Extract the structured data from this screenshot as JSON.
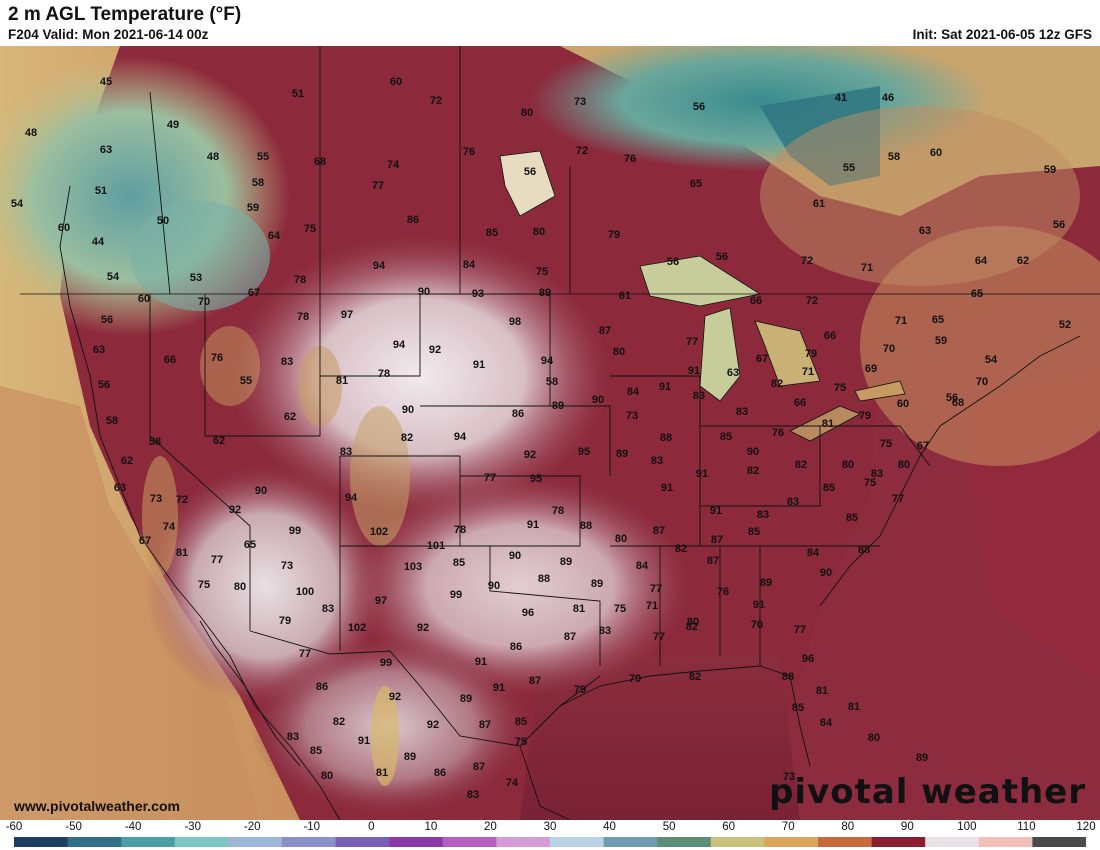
{
  "header": {
    "title": "2 m AGL Temperature (°F)",
    "valid": "F204 Valid: Mon 2021-06-14 00z",
    "init": "Init: Sat 2021-06-05 12z GFS"
  },
  "footer": {
    "credit": "www.pivotalweather.com",
    "watermark": "pivotal weather"
  },
  "colorbar": {
    "ticks": [
      "-60",
      "-50",
      "-40",
      "-30",
      "-20",
      "-10",
      "0",
      "10",
      "20",
      "30",
      "40",
      "50",
      "60",
      "70",
      "80",
      "90",
      "100",
      "110",
      "120"
    ],
    "colors": [
      "#1d3f63",
      "#2f6f8a",
      "#4a9ea6",
      "#7cc7c4",
      "#9db6d8",
      "#8d90c8",
      "#7a5fb6",
      "#8a3aa8",
      "#b55fc0",
      "#d79bd8",
      "#b9d2e6",
      "#6f9cb2",
      "#5b8d78",
      "#c9c27a",
      "#d9a65a",
      "#c86b3b",
      "#8a1f2f",
      "#e8e2e6",
      "#f3c0b9",
      "#4a4a4a"
    ]
  },
  "map_data": {
    "points": [
      {
        "v": "45"
      },
      {
        "v": "51"
      },
      {
        "v": "60"
      },
      {
        "v": "72"
      },
      {
        "v": "80"
      },
      {
        "v": "73"
      },
      {
        "v": "56"
      },
      {
        "v": "41"
      },
      {
        "v": "46"
      },
      {
        "v": "48"
      },
      {
        "v": "49"
      },
      {
        "v": "63"
      },
      {
        "v": "48"
      },
      {
        "v": "55"
      },
      {
        "v": "68"
      },
      {
        "v": "74"
      },
      {
        "v": "76"
      },
      {
        "v": "72"
      },
      {
        "v": "76"
      },
      {
        "v": "58"
      },
      {
        "v": "60"
      },
      {
        "v": "59"
      },
      {
        "v": "51"
      },
      {
        "v": "58"
      },
      {
        "v": "77"
      },
      {
        "v": "56"
      },
      {
        "v": "65"
      },
      {
        "v": "55"
      },
      {
        "v": "54"
      },
      {
        "v": "59"
      },
      {
        "v": "86"
      },
      {
        "v": "61"
      },
      {
        "v": "60"
      },
      {
        "v": "50"
      },
      {
        "v": "64"
      },
      {
        "v": "75"
      },
      {
        "v": "85"
      },
      {
        "v": "80"
      },
      {
        "v": "79"
      },
      {
        "v": "63"
      },
      {
        "v": "56"
      },
      {
        "v": "44"
      },
      {
        "v": "72"
      },
      {
        "v": "71"
      },
      {
        "v": "64"
      },
      {
        "v": "62"
      },
      {
        "v": "53"
      },
      {
        "v": "78"
      },
      {
        "v": "94"
      },
      {
        "v": "84"
      },
      {
        "v": "75"
      },
      {
        "v": "56"
      },
      {
        "v": "56"
      },
      {
        "v": "54"
      },
      {
        "v": "60"
      },
      {
        "v": "70"
      },
      {
        "v": "67"
      },
      {
        "v": "90"
      },
      {
        "v": "93"
      },
      {
        "v": "89"
      },
      {
        "v": "61"
      },
      {
        "v": "66"
      },
      {
        "v": "72"
      },
      {
        "v": "65"
      },
      {
        "v": "56"
      },
      {
        "v": "78"
      },
      {
        "v": "97"
      },
      {
        "v": "98"
      },
      {
        "v": "87"
      },
      {
        "v": "71"
      },
      {
        "v": "65"
      },
      {
        "v": "52"
      },
      {
        "v": "63"
      },
      {
        "v": "66"
      },
      {
        "v": "76"
      },
      {
        "v": "83"
      },
      {
        "v": "94"
      },
      {
        "v": "92"
      },
      {
        "v": "80"
      },
      {
        "v": "77"
      },
      {
        "v": "67"
      },
      {
        "v": "66"
      },
      {
        "v": "59"
      },
      {
        "v": "55"
      },
      {
        "v": "81"
      },
      {
        "v": "78"
      },
      {
        "v": "91"
      },
      {
        "v": "94"
      },
      {
        "v": "91"
      },
      {
        "v": "63"
      },
      {
        "v": "79"
      },
      {
        "v": "69"
      },
      {
        "v": "70"
      },
      {
        "v": "54"
      },
      {
        "v": "56"
      },
      {
        "v": "58"
      },
      {
        "v": "91"
      },
      {
        "v": "82"
      },
      {
        "v": "71"
      },
      {
        "v": "75"
      },
      {
        "v": "70"
      },
      {
        "v": "62"
      },
      {
        "v": "90"
      },
      {
        "v": "86"
      },
      {
        "v": "89"
      },
      {
        "v": "90"
      },
      {
        "v": "84"
      },
      {
        "v": "83"
      },
      {
        "v": "66"
      },
      {
        "v": "68"
      },
      {
        "v": "58"
      },
      {
        "v": "73"
      },
      {
        "v": "83"
      },
      {
        "v": "76"
      },
      {
        "v": "79"
      },
      {
        "v": "60"
      },
      {
        "v": "56"
      },
      {
        "v": "58"
      },
      {
        "v": "62"
      },
      {
        "v": "82"
      },
      {
        "v": "94"
      },
      {
        "v": "95"
      },
      {
        "v": "88"
      },
      {
        "v": "85"
      },
      {
        "v": "81"
      },
      {
        "v": "75"
      },
      {
        "v": "67"
      },
      {
        "v": "62"
      },
      {
        "v": "83"
      },
      {
        "v": "92"
      },
      {
        "v": "89"
      },
      {
        "v": "83"
      },
      {
        "v": "90"
      },
      {
        "v": "80"
      },
      {
        "v": "63"
      },
      {
        "v": "72"
      },
      {
        "v": "77"
      },
      {
        "v": "95"
      },
      {
        "v": "91"
      },
      {
        "v": "82"
      },
      {
        "v": "82"
      },
      {
        "v": "80"
      },
      {
        "v": "83"
      },
      {
        "v": "73"
      },
      {
        "v": "90"
      },
      {
        "v": "94"
      },
      {
        "v": "91"
      },
      {
        "v": "85"
      },
      {
        "v": "75"
      },
      {
        "v": "74"
      },
      {
        "v": "92"
      },
      {
        "v": "99"
      },
      {
        "v": "78"
      },
      {
        "v": "88"
      },
      {
        "v": "80"
      },
      {
        "v": "83"
      },
      {
        "v": "77"
      },
      {
        "v": "67"
      },
      {
        "v": "65"
      },
      {
        "v": "102"
      },
      {
        "v": "78"
      },
      {
        "v": "91"
      },
      {
        "v": "87"
      },
      {
        "v": "91"
      },
      {
        "v": "83"
      },
      {
        "v": "85"
      },
      {
        "v": "81"
      },
      {
        "v": "77"
      },
      {
        "v": "101"
      },
      {
        "v": "90"
      },
      {
        "v": "89"
      },
      {
        "v": "82"
      },
      {
        "v": "87"
      },
      {
        "v": "85"
      },
      {
        "v": "84"
      },
      {
        "v": "88"
      },
      {
        "v": "75"
      },
      {
        "v": "73"
      },
      {
        "v": "103"
      },
      {
        "v": "85"
      },
      {
        "v": "88"
      },
      {
        "v": "84"
      },
      {
        "v": "87"
      },
      {
        "v": "89"
      },
      {
        "v": "90"
      },
      {
        "v": "80"
      },
      {
        "v": "100"
      },
      {
        "v": "99"
      },
      {
        "v": "90"
      },
      {
        "v": "89"
      },
      {
        "v": "77"
      },
      {
        "v": "76"
      },
      {
        "v": "91"
      },
      {
        "v": "83"
      },
      {
        "v": "97"
      },
      {
        "v": "96"
      },
      {
        "v": "81"
      },
      {
        "v": "75"
      },
      {
        "v": "71"
      },
      {
        "v": "80"
      },
      {
        "v": "79"
      },
      {
        "v": "102"
      },
      {
        "v": "92"
      },
      {
        "v": "86"
      },
      {
        "v": "87"
      },
      {
        "v": "83"
      },
      {
        "v": "77"
      },
      {
        "v": "82"
      },
      {
        "v": "70"
      },
      {
        "v": "77"
      },
      {
        "v": "77"
      },
      {
        "v": "99"
      },
      {
        "v": "91"
      },
      {
        "v": "96"
      },
      {
        "v": "86"
      },
      {
        "v": "92"
      },
      {
        "v": "91"
      },
      {
        "v": "87"
      },
      {
        "v": "79"
      },
      {
        "v": "79"
      },
      {
        "v": "82"
      },
      {
        "v": "82"
      },
      {
        "v": "89"
      },
      {
        "v": "87"
      },
      {
        "v": "85"
      },
      {
        "v": "88"
      },
      {
        "v": "81"
      },
      {
        "v": "81"
      },
      {
        "v": "83"
      },
      {
        "v": "85"
      },
      {
        "v": "91"
      },
      {
        "v": "92"
      },
      {
        "v": "75"
      },
      {
        "v": "84"
      },
      {
        "v": "80"
      },
      {
        "v": "89"
      },
      {
        "v": "87"
      },
      {
        "v": "74"
      },
      {
        "v": "81"
      },
      {
        "v": "86"
      },
      {
        "v": "85"
      },
      {
        "v": "80"
      },
      {
        "v": "89"
      },
      {
        "v": "83"
      },
      {
        "v": "73"
      }
    ]
  }
}
